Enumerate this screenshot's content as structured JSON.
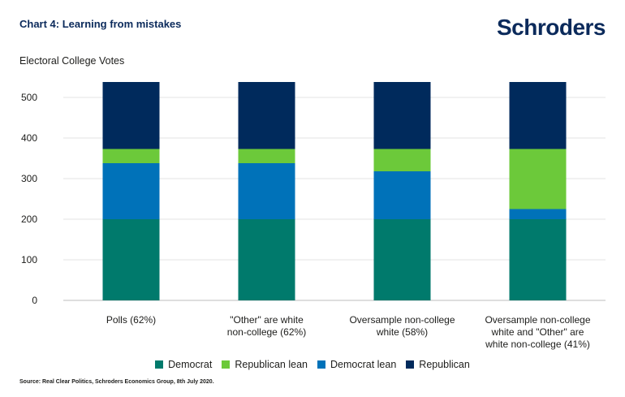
{
  "header": {
    "title": "Chart 4: Learning from mistakes",
    "logo": "Schroders"
  },
  "footer": {
    "source": "Source: Real Clear Politics, Schroders Economics Group, 8th July 2020."
  },
  "colors": {
    "democrat": "#007a6c",
    "republican_lean": "#6cc93a",
    "democrat_lean": "#0072b9",
    "republican": "#002a5c",
    "grid": "#e3e3e3"
  },
  "chart_data": {
    "type": "bar",
    "stacked": true,
    "title": "Chart 4: Learning from mistakes",
    "ylabel": "Electoral College Votes",
    "xlabel": "",
    "ylim": [
      0,
      550
    ],
    "yticks": [
      0,
      100,
      200,
      300,
      400,
      500
    ],
    "grid": true,
    "legend_position": "bottom",
    "categories": [
      [
        "Polls (62%)"
      ],
      [
        "\"Other\" are white",
        "non-college (62%)"
      ],
      [
        "Oversample non-college",
        "white (58%)"
      ],
      [
        "Oversample non-college",
        "white and \"Other\" are",
        "white non-college (41%)"
      ]
    ],
    "series": [
      {
        "name": "Democrat",
        "color": "#007a6c",
        "values": [
          200,
          200,
          200,
          200
        ]
      },
      {
        "name": "Democrat lean",
        "color": "#0072b9",
        "values": [
          138,
          138,
          118,
          25
        ]
      },
      {
        "name": "Republican lean",
        "color": "#6cc93a",
        "values": [
          35,
          35,
          55,
          148
        ]
      },
      {
        "name": "Republican",
        "color": "#002a5c",
        "values": [
          165,
          165,
          165,
          165
        ]
      }
    ],
    "legend": [
      "Democrat",
      "Republican lean",
      "Democrat lean",
      "Republican"
    ]
  }
}
